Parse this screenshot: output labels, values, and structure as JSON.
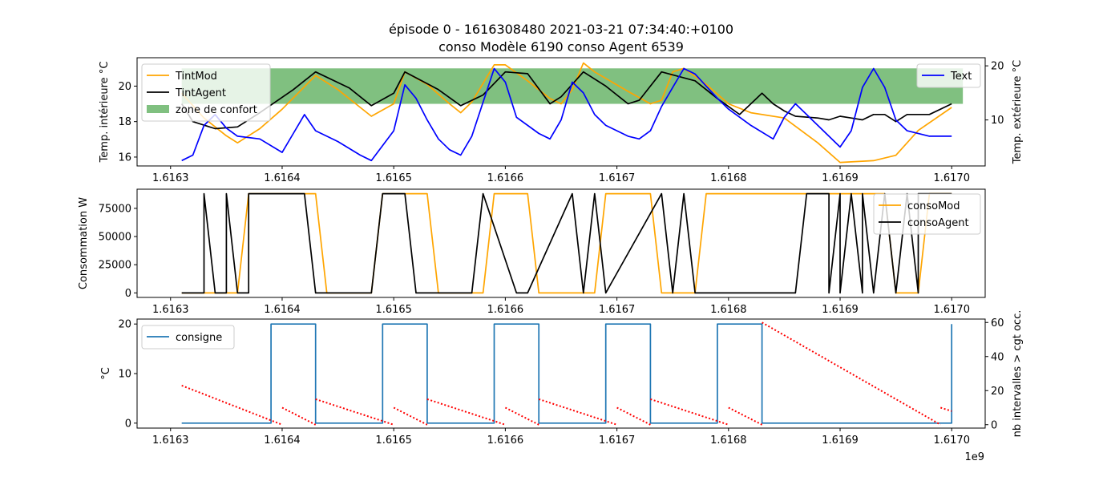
{
  "figure": {
    "title_line1": "épisode 0 - 1616308480 2021-03-21 07:34:40:+0100",
    "title_line2": "conso Modèle 6190 conso Agent 6539",
    "x_offset_label": "1e9"
  },
  "chart_data": [
    {
      "type": "line",
      "name": "temperature-panel",
      "ylabel": "Temp. intérieure °C",
      "ylabel_right": "Temp. extérieure °C",
      "xlim": [
        1.61627,
        1.61703
      ],
      "ylim": [
        15.5,
        21.6
      ],
      "ylim_right": [
        1.5,
        21.5
      ],
      "x_ticks": [
        1.6163,
        1.6164,
        1.6165,
        1.6166,
        1.6167,
        1.6168,
        1.6169,
        1.617
      ],
      "x_tick_labels": [
        "1.6163",
        "1.6164",
        "1.6165",
        "1.6166",
        "1.6167",
        "1.6168",
        "1.6169",
        "1.6170"
      ],
      "y_ticks": [
        16,
        18,
        20
      ],
      "y_tick_labels": [
        "16",
        "18",
        "20"
      ],
      "y_ticks_right": [
        10,
        20
      ],
      "y_tick_labels_right": [
        "10",
        "20"
      ],
      "band": {
        "name": "zone de confort",
        "color": "#80c080",
        "y": [
          19,
          21
        ],
        "x": [
          1.61631,
          1.61701
        ]
      },
      "legend": {
        "position": "top-left",
        "entries": [
          "TintMod",
          "TintAgent",
          "zone de confort"
        ]
      },
      "legend_right": {
        "position": "top-right",
        "entries": [
          "Text"
        ]
      },
      "series": [
        {
          "name": "TintMod",
          "color": "#ffa500",
          "axis": "left",
          "x": [
            1.61631,
            1.61633,
            1.61635,
            1.61636,
            1.61638,
            1.6164,
            1.61643,
            1.61645,
            1.61647,
            1.61648,
            1.6165,
            1.61651,
            1.61653,
            1.61655,
            1.61656,
            1.61657,
            1.61659,
            1.6166,
            1.61662,
            1.61664,
            1.61665,
            1.61666,
            1.61667,
            1.61668,
            1.61671,
            1.61673,
            1.61674,
            1.61675,
            1.61676,
            1.61678,
            1.6168,
            1.61682,
            1.61685,
            1.61688,
            1.6169,
            1.61693,
            1.61695,
            1.61697,
            1.617
          ],
          "values": [
            19.6,
            18.2,
            17.2,
            16.8,
            17.6,
            18.7,
            20.6,
            19.8,
            18.8,
            18.3,
            19.0,
            20.8,
            20.1,
            19.0,
            18.5,
            19.1,
            21.2,
            21.2,
            20.3,
            19.3,
            19.0,
            19.8,
            21.3,
            20.8,
            19.7,
            19.0,
            19.2,
            20.8,
            21.0,
            20.1,
            19.0,
            18.5,
            18.2,
            16.8,
            15.7,
            15.8,
            16.1,
            17.5,
            18.8
          ]
        },
        {
          "name": "TintAgent",
          "color": "#000000",
          "axis": "left",
          "x": [
            1.61631,
            1.61632,
            1.61634,
            1.61636,
            1.61638,
            1.61641,
            1.61643,
            1.61646,
            1.61648,
            1.6165,
            1.61651,
            1.61654,
            1.61656,
            1.61658,
            1.6166,
            1.61662,
            1.61664,
            1.61665,
            1.61667,
            1.61669,
            1.61671,
            1.61672,
            1.61674,
            1.61677,
            1.61679,
            1.61681,
            1.61683,
            1.61684,
            1.61685,
            1.61686,
            1.61688,
            1.61689,
            1.6169,
            1.61691,
            1.61692,
            1.61693,
            1.61694,
            1.61695,
            1.61696,
            1.61697,
            1.61698,
            1.617
          ],
          "values": [
            19.0,
            18.0,
            17.6,
            17.7,
            18.5,
            19.8,
            20.8,
            19.9,
            18.9,
            19.6,
            20.8,
            19.8,
            18.9,
            19.5,
            20.8,
            20.7,
            19.0,
            19.4,
            20.8,
            20.0,
            19.0,
            19.2,
            20.8,
            20.3,
            19.3,
            18.4,
            19.6,
            19.0,
            18.6,
            18.3,
            18.2,
            18.1,
            18.3,
            18.2,
            18.1,
            18.4,
            18.4,
            18.0,
            18.4,
            18.4,
            18.4,
            19.0
          ]
        },
        {
          "name": "Text",
          "color": "#0000ff",
          "axis": "right",
          "x": [
            1.61631,
            1.61632,
            1.61633,
            1.61634,
            1.61635,
            1.61636,
            1.61638,
            1.6164,
            1.61641,
            1.61642,
            1.61643,
            1.61644,
            1.61645,
            1.61647,
            1.61648,
            1.6165,
            1.61651,
            1.61652,
            1.61653,
            1.61654,
            1.61655,
            1.61656,
            1.61657,
            1.61659,
            1.6166,
            1.61661,
            1.61663,
            1.61664,
            1.61665,
            1.61666,
            1.61667,
            1.61668,
            1.61669,
            1.61671,
            1.61672,
            1.61673,
            1.61674,
            1.61675,
            1.61676,
            1.61677,
            1.61679,
            1.6168,
            1.61682,
            1.61684,
            1.61685,
            1.61686,
            1.61687,
            1.61689,
            1.6169,
            1.61691,
            1.61692,
            1.61693,
            1.61694,
            1.61695,
            1.61696,
            1.61698,
            1.617
          ],
          "values": [
            2.5,
            3.5,
            9.0,
            11.0,
            8.5,
            7.0,
            6.5,
            4.0,
            7.5,
            11.0,
            8.0,
            7.0,
            6.0,
            3.5,
            2.5,
            8.0,
            16.5,
            14.0,
            10.0,
            6.5,
            4.5,
            3.5,
            7.0,
            19.5,
            17.0,
            10.5,
            7.5,
            6.5,
            10.0,
            17.0,
            15.0,
            11.0,
            9.0,
            7.0,
            6.5,
            8.0,
            12.5,
            16.0,
            19.5,
            18.5,
            14.0,
            12.0,
            9.0,
            6.5,
            10.5,
            13.0,
            11.0,
            7.0,
            5.0,
            8.0,
            16.0,
            19.5,
            16.0,
            10.0,
            8.0,
            7.0,
            7.0
          ]
        }
      ]
    },
    {
      "type": "line",
      "name": "consumption-panel",
      "ylabel": "Consommation W",
      "xlim": [
        1.61627,
        1.61703
      ],
      "ylim": [
        -4000,
        92000
      ],
      "x_ticks": [
        1.6163,
        1.6164,
        1.6165,
        1.6166,
        1.6167,
        1.6168,
        1.6169,
        1.617
      ],
      "x_tick_labels": [
        "1.6163",
        "1.6164",
        "1.6165",
        "1.6166",
        "1.6167",
        "1.6168",
        "1.6169",
        "1.6170"
      ],
      "y_ticks": [
        0,
        25000,
        50000,
        75000
      ],
      "y_tick_labels": [
        "0",
        "25000",
        "50000",
        "75000"
      ],
      "legend": {
        "position": "top-right",
        "entries": [
          "consoMod",
          "consoAgent"
        ]
      },
      "series": [
        {
          "name": "consoMod",
          "color": "#ffa500",
          "x": [
            1.61631,
            1.61636,
            1.61637,
            1.61643,
            1.61644,
            1.61648,
            1.61649,
            1.61653,
            1.61654,
            1.61658,
            1.61659,
            1.61662,
            1.61663,
            1.61668,
            1.61669,
            1.61673,
            1.61674,
            1.61677,
            1.61678,
            1.61694,
            1.61695,
            1.61697,
            1.61698,
            1.617
          ],
          "values": [
            0,
            0,
            88000,
            88000,
            0,
            0,
            88000,
            88000,
            0,
            0,
            88000,
            88000,
            0,
            0,
            88000,
            88000,
            0,
            0,
            88000,
            88000,
            0,
            0,
            88000,
            88000
          ]
        },
        {
          "name": "consoAgent",
          "color": "#000000",
          "x": [
            1.61631,
            1.61633,
            1.61633,
            1.61634,
            1.61635,
            1.61635,
            1.61636,
            1.61637,
            1.61637,
            1.61642,
            1.61643,
            1.61648,
            1.61649,
            1.61651,
            1.61652,
            1.61657,
            1.61658,
            1.61661,
            1.61662,
            1.61666,
            1.61667,
            1.61668,
            1.61669,
            1.61674,
            1.61675,
            1.61676,
            1.61677,
            1.61686,
            1.61687,
            1.61689,
            1.61689,
            1.6169,
            1.6169,
            1.61691,
            1.61692,
            1.61692,
            1.61693,
            1.61694,
            1.61695,
            1.61696,
            1.61697,
            1.61697,
            1.617
          ],
          "values": [
            0,
            0,
            88000,
            0,
            0,
            88000,
            0,
            0,
            88000,
            88000,
            0,
            0,
            88000,
            88000,
            0,
            0,
            88000,
            0,
            0,
            88000,
            0,
            88000,
            0,
            88000,
            0,
            88000,
            0,
            0,
            88000,
            88000,
            0,
            88000,
            0,
            88000,
            0,
            88000,
            0,
            88000,
            0,
            88000,
            0,
            88000,
            88000
          ]
        }
      ]
    },
    {
      "type": "line",
      "name": "setpoint-panel",
      "ylabel": "°C",
      "ylabel_right": "nb intervalles > cgt occ.",
      "xlim": [
        1.61627,
        1.61703
      ],
      "ylim": [
        -1,
        21
      ],
      "ylim_right": [
        -2,
        62
      ],
      "x_ticks": [
        1.6163,
        1.6164,
        1.6165,
        1.6166,
        1.6167,
        1.6168,
        1.6169,
        1.617
      ],
      "x_tick_labels": [
        "1.6163",
        "1.6164",
        "1.6165",
        "1.6166",
        "1.6167",
        "1.6168",
        "1.6169",
        "1.6170"
      ],
      "y_ticks": [
        0,
        10,
        20
      ],
      "y_tick_labels": [
        "0",
        "10",
        "20"
      ],
      "y_ticks_right": [
        0,
        20,
        40,
        60
      ],
      "y_tick_labels_right": [
        "0",
        "20",
        "40",
        "60"
      ],
      "legend": {
        "position": "top-left",
        "entries": [
          "consigne"
        ]
      },
      "series": [
        {
          "name": "consigne",
          "color": "#1f77b4",
          "axis": "left",
          "x": [
            1.61631,
            1.61639,
            1.61639,
            1.61643,
            1.61643,
            1.61649,
            1.61649,
            1.61653,
            1.61653,
            1.61659,
            1.61659,
            1.61663,
            1.61663,
            1.61669,
            1.61669,
            1.61673,
            1.61673,
            1.61679,
            1.61679,
            1.61683,
            1.61683,
            1.617,
            1.617,
            1.617
          ],
          "values": [
            0,
            0,
            20,
            20,
            0,
            0,
            20,
            20,
            0,
            0,
            20,
            20,
            0,
            0,
            20,
            20,
            0,
            0,
            20,
            20,
            0,
            0,
            20,
            20
          ]
        },
        {
          "name": "",
          "color": "#ff0000",
          "axis": "right",
          "style": "dotted",
          "segments": [
            {
              "x": [
                1.61631,
                1.6164
              ],
              "values": [
                23,
                0
              ]
            },
            {
              "x": [
                1.6164,
                1.61643
              ],
              "values": [
                10,
                0
              ]
            },
            {
              "x": [
                1.61643,
                1.6165
              ],
              "values": [
                15,
                0
              ]
            },
            {
              "x": [
                1.6165,
                1.61653
              ],
              "values": [
                10,
                0
              ]
            },
            {
              "x": [
                1.61653,
                1.6166
              ],
              "values": [
                15,
                0
              ]
            },
            {
              "x": [
                1.6166,
                1.61663
              ],
              "values": [
                10,
                0
              ]
            },
            {
              "x": [
                1.61663,
                1.6167
              ],
              "values": [
                15,
                0
              ]
            },
            {
              "x": [
                1.6167,
                1.61673
              ],
              "values": [
                10,
                0
              ]
            },
            {
              "x": [
                1.61673,
                1.6168
              ],
              "values": [
                15,
                0
              ]
            },
            {
              "x": [
                1.6168,
                1.61683
              ],
              "values": [
                10,
                0
              ]
            },
            {
              "x": [
                1.61683,
                1.61699
              ],
              "values": [
                60,
                0
              ]
            },
            {
              "x": [
                1.61699,
                1.617
              ],
              "values": [
                10,
                8
              ]
            }
          ]
        }
      ]
    }
  ]
}
